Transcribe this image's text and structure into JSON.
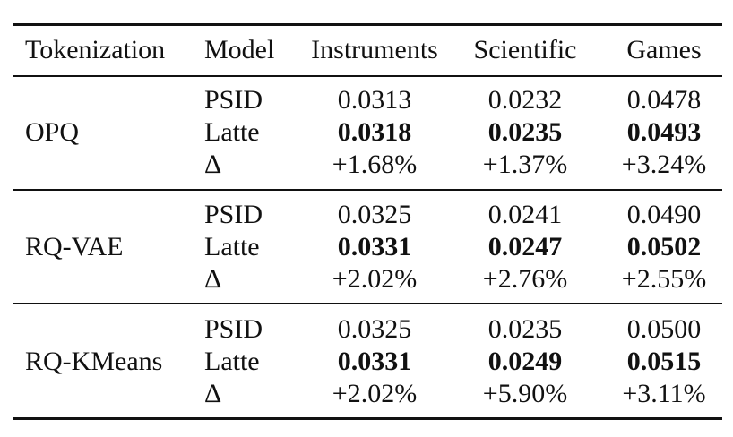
{
  "table": {
    "headers": [
      "Tokenization",
      "Model",
      "Instruments",
      "Scientific",
      "Games"
    ],
    "groups": [
      {
        "tokenization": "OPQ",
        "rows": [
          {
            "model": "PSID",
            "values": [
              "0.0313",
              "0.0232",
              "0.0478"
            ],
            "bold": false
          },
          {
            "model": "Latte",
            "values": [
              "0.0318",
              "0.0235",
              "0.0493"
            ],
            "bold": true
          },
          {
            "model": "Δ",
            "values": [
              "+1.68%",
              "+1.37%",
              "+3.24%"
            ],
            "bold": false
          }
        ]
      },
      {
        "tokenization": "RQ-VAE",
        "rows": [
          {
            "model": "PSID",
            "values": [
              "0.0325",
              "0.0241",
              "0.0490"
            ],
            "bold": false
          },
          {
            "model": "Latte",
            "values": [
              "0.0331",
              "0.0247",
              "0.0502"
            ],
            "bold": true
          },
          {
            "model": "Δ",
            "values": [
              "+2.02%",
              "+2.76%",
              "+2.55%"
            ],
            "bold": false
          }
        ]
      },
      {
        "tokenization": "RQ-KMeans",
        "rows": [
          {
            "model": "PSID",
            "values": [
              "0.0325",
              "0.0235",
              "0.0500"
            ],
            "bold": false
          },
          {
            "model": "Latte",
            "values": [
              "0.0331",
              "0.0249",
              "0.0515"
            ],
            "bold": true
          },
          {
            "model": "Δ",
            "values": [
              "+2.02%",
              "+5.90%",
              "+3.11%"
            ],
            "bold": false
          }
        ]
      }
    ]
  }
}
